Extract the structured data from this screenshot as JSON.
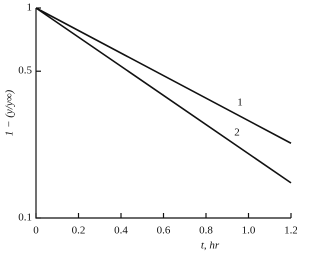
{
  "chart_data": {
    "type": "line",
    "y_log": true,
    "xlabel": "t, hr",
    "ylabel": "1 − (y/y∞)",
    "x": [
      0,
      1.2
    ],
    "series": [
      {
        "name": "1",
        "color": "#111111",
        "values": [
          1,
          0.227
        ]
      },
      {
        "name": "2",
        "color": "#111111",
        "values": [
          1,
          0.147
        ]
      }
    ],
    "xlim": [
      0,
      1.2
    ],
    "xticks": [
      0,
      0.2,
      0.4,
      0.6,
      0.8,
      {
        "value": 1,
        "label": "1.0"
      },
      1.2
    ],
    "ylim": [
      0.1,
      1
    ],
    "yticks": [
      0.1,
      0.5,
      1
    ]
  }
}
